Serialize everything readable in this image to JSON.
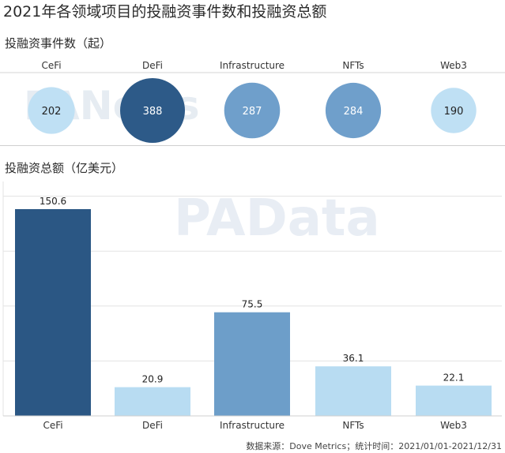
{
  "title": "2021年各领域项目的投融资事件数和投融资总额",
  "watermark": "PANews",
  "watermark2": "PAData",
  "source": "数据来源：Dove Metrics；统计时间：2021/01/01-2021/12/31",
  "colors": {
    "dark": "#2b5784",
    "mid": "#6d9ec9",
    "light": "#b8dcf2",
    "bubble_dark": "#2d5a88",
    "bubble_mid": "#6f9fcb",
    "bubble_light": "#bfe0f4"
  },
  "chart_data": [
    {
      "type": "scatter",
      "title": "投融资事件数（起）",
      "categories": [
        "CeFi",
        "DeFi",
        "Infrastructure",
        "NFTs",
        "Web3"
      ],
      "values": [
        202,
        388,
        287,
        284,
        190
      ]
    },
    {
      "type": "bar",
      "title": "投融资总额（亿美元）",
      "categories": [
        "CeFi",
        "DeFi",
        "Infrastructure",
        "NFTs",
        "Web3"
      ],
      "values": [
        150.6,
        20.9,
        75.5,
        36.1,
        22.1
      ],
      "ylim": [
        0,
        160
      ],
      "grid": true
    }
  ]
}
